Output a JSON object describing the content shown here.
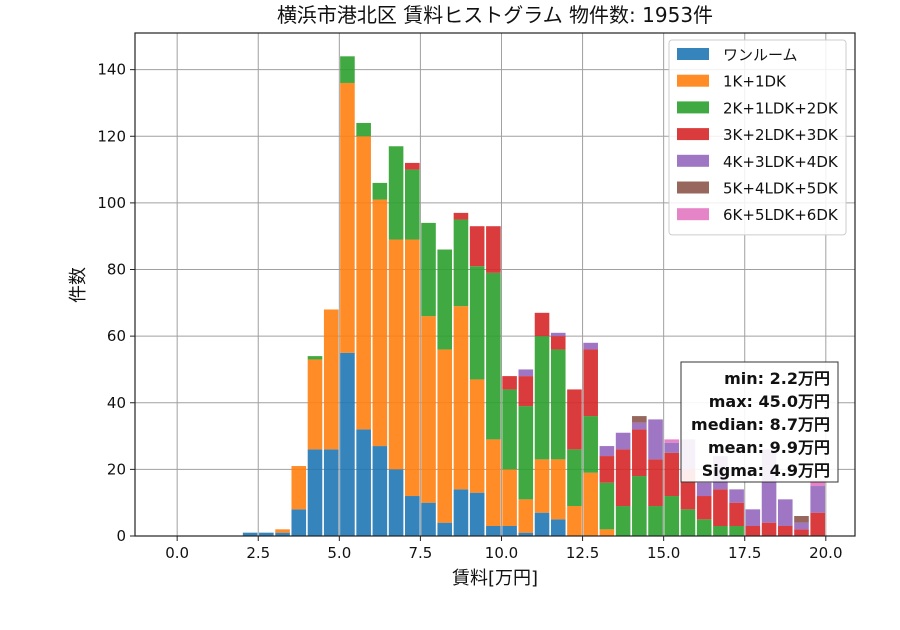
{
  "chart_data": {
    "type": "bar",
    "stacked": true,
    "title": "横浜市港北区 賃料ヒストグラム  物件数: 1953件",
    "xlabel": "賃料[万円]",
    "ylabel": "件数",
    "xlim": [
      -1.3,
      20.9
    ],
    "ylim": [
      0,
      151
    ],
    "grid": true,
    "legend_position": "top-right",
    "bin_width": 0.5,
    "x_ticks": [
      0.0,
      2.5,
      5.0,
      7.5,
      10.0,
      12.5,
      15.0,
      17.5,
      20.0
    ],
    "x_tick_labels": [
      "0.0",
      "2.5",
      "5.0",
      "7.5",
      "10.0",
      "12.5",
      "15.0",
      "17.5",
      "20.0"
    ],
    "y_ticks": [
      0,
      20,
      40,
      60,
      80,
      100,
      120,
      140
    ],
    "y_tick_labels": [
      "0",
      "20",
      "40",
      "60",
      "80",
      "100",
      "120",
      "140"
    ],
    "bins": [
      2.0,
      2.5,
      3.0,
      3.5,
      4.0,
      4.5,
      5.0,
      5.5,
      6.0,
      6.5,
      7.0,
      7.5,
      8.0,
      8.5,
      9.0,
      9.5,
      10.0,
      10.5,
      11.0,
      11.5,
      12.0,
      12.5,
      13.0,
      13.5,
      14.0,
      14.5,
      15.0,
      15.5,
      16.0,
      16.5,
      17.0,
      17.5,
      18.0,
      18.5,
      19.0,
      19.5
    ],
    "series": [
      {
        "name": "ワンルーム",
        "color": "#1f77b4",
        "values": [
          1,
          1,
          1,
          8,
          26,
          26,
          55,
          32,
          27,
          20,
          12,
          10,
          4,
          14,
          13,
          3,
          3,
          1,
          7,
          5,
          0,
          0,
          0,
          0,
          0,
          0,
          0,
          0,
          0,
          0,
          0,
          0,
          0,
          0,
          0,
          0
        ]
      },
      {
        "name": "1K+1DK",
        "color": "#ff7f0e",
        "values": [
          0,
          0,
          1,
          13,
          27,
          42,
          81,
          88,
          74,
          69,
          77,
          56,
          52,
          55,
          34,
          26,
          17,
          10,
          16,
          18,
          9,
          19,
          2,
          0,
          0,
          0,
          0,
          0,
          0,
          0,
          0,
          0,
          0,
          0,
          0,
          0
        ]
      },
      {
        "name": "2K+1LDK+2DK",
        "color": "#2ca02c",
        "values": [
          0,
          0,
          0,
          0,
          1,
          0,
          8,
          4,
          5,
          28,
          21,
          28,
          30,
          26,
          34,
          50,
          24,
          28,
          37,
          33,
          17,
          17,
          14,
          9,
          18,
          9,
          12,
          8,
          5,
          3,
          3,
          0,
          0,
          0,
          0,
          0
        ]
      },
      {
        "name": "3K+2LDK+3DK",
        "color": "#d62728",
        "values": [
          0,
          0,
          0,
          0,
          0,
          0,
          0,
          0,
          0,
          0,
          2,
          0,
          0,
          2,
          12,
          14,
          4,
          9,
          7,
          4,
          18,
          20,
          8,
          17,
          14,
          14,
          13,
          12,
          7,
          11,
          7,
          3,
          4,
          3,
          2,
          7
        ]
      },
      {
        "name": "4K+3LDK+4DK",
        "color": "#9467bd",
        "values": [
          0,
          0,
          0,
          0,
          0,
          0,
          0,
          0,
          0,
          0,
          0,
          0,
          0,
          0,
          0,
          0,
          0,
          2,
          0,
          1,
          0,
          2,
          3,
          5,
          2,
          12,
          3,
          9,
          4,
          10,
          4,
          5,
          22,
          8,
          2,
          8
        ]
      },
      {
        "name": "5K+4LDK+5DK",
        "color": "#8c564b",
        "values": [
          0,
          0,
          0,
          0,
          0,
          0,
          0,
          0,
          0,
          0,
          0,
          0,
          0,
          0,
          0,
          0,
          0,
          0,
          0,
          0,
          0,
          0,
          0,
          0,
          2,
          0,
          0,
          0,
          0,
          0,
          0,
          0,
          0,
          0,
          2,
          0
        ]
      },
      {
        "name": "6K+5LDK+6DK",
        "color": "#e377c2",
        "values": [
          0,
          0,
          0,
          0,
          0,
          0,
          0,
          0,
          0,
          0,
          0,
          0,
          0,
          0,
          0,
          0,
          0,
          0,
          0,
          0,
          0,
          0,
          0,
          0,
          0,
          0,
          1,
          0,
          0,
          0,
          0,
          0,
          0,
          0,
          0,
          2
        ]
      }
    ],
    "annotation_lines": [
      "min: 2.2万円",
      "max: 45.0万円",
      "median: 8.7万円",
      "mean: 9.9万円",
      "Sigma: 4.9万円"
    ]
  }
}
